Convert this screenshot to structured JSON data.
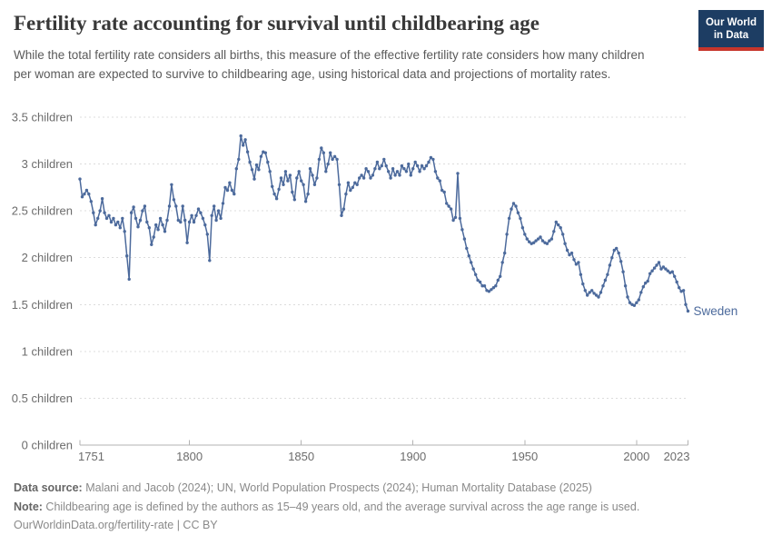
{
  "header": {
    "title": "Fertility rate accounting for survival until childbearing age",
    "subtitle": "While the total fertility rate considers all births, this measure of the effective fertility rate considers how many children per woman are expected to survive to childbearing age, using historical data and projections of mortality rates.",
    "logo": {
      "line1": "Our World",
      "line2": "in Data"
    }
  },
  "colors": {
    "series_blue": "#4C6A9C",
    "logo_bg": "#1d3d63",
    "logo_stripe": "#c7352b",
    "grid": "#dcdcdc",
    "axis": "#b3b3b3",
    "tick_text": "#6c6c6c"
  },
  "chart_data": {
    "type": "line",
    "title": "Fertility rate accounting for survival until childbearing age",
    "xlabel": "",
    "ylabel": "",
    "xlim": [
      1751,
      2023
    ],
    "ylim": [
      0,
      3.5
    ],
    "grid": "dashed horizontal",
    "legend_position": "end-of-line label",
    "y_axis": {
      "ticks": [
        {
          "value": 3.5,
          "label": "3.5 children"
        },
        {
          "value": 3,
          "label": "3 children"
        },
        {
          "value": 2.5,
          "label": "2.5 children"
        },
        {
          "value": 2,
          "label": "2 children"
        },
        {
          "value": 1.5,
          "label": "1.5 children"
        },
        {
          "value": 1,
          "label": "1 children"
        },
        {
          "value": 0.5,
          "label": "0.5 children"
        },
        {
          "value": 0,
          "label": "0 children"
        }
      ]
    },
    "x_axis": {
      "ticks": [
        {
          "value": 1751,
          "label": "1751"
        },
        {
          "value": 1800,
          "label": "1800"
        },
        {
          "value": 1850,
          "label": "1850"
        },
        {
          "value": 1900,
          "label": "1900"
        },
        {
          "value": 1950,
          "label": "1950"
        },
        {
          "value": 2000,
          "label": "2000"
        },
        {
          "value": 2023,
          "label": "2023"
        }
      ]
    },
    "series": [
      {
        "name": "Sweden",
        "color": "#4C6A9C",
        "label_last_value": 1.43,
        "years": [
          1751,
          1752,
          1753,
          1754,
          1755,
          1756,
          1757,
          1758,
          1759,
          1760,
          1761,
          1762,
          1763,
          1764,
          1765,
          1766,
          1767,
          1768,
          1769,
          1770,
          1771,
          1772,
          1773,
          1774,
          1775,
          1776,
          1777,
          1778,
          1779,
          1780,
          1781,
          1782,
          1783,
          1784,
          1785,
          1786,
          1787,
          1788,
          1789,
          1790,
          1791,
          1792,
          1793,
          1794,
          1795,
          1796,
          1797,
          1798,
          1799,
          1800,
          1801,
          1802,
          1803,
          1804,
          1805,
          1806,
          1807,
          1808,
          1809,
          1810,
          1811,
          1812,
          1813,
          1814,
          1815,
          1816,
          1817,
          1818,
          1819,
          1820,
          1821,
          1822,
          1823,
          1824,
          1825,
          1826,
          1827,
          1828,
          1829,
          1830,
          1831,
          1832,
          1833,
          1834,
          1835,
          1836,
          1837,
          1838,
          1839,
          1840,
          1841,
          1842,
          1843,
          1844,
          1845,
          1846,
          1847,
          1848,
          1849,
          1850,
          1851,
          1852,
          1853,
          1854,
          1855,
          1856,
          1857,
          1858,
          1859,
          1860,
          1861,
          1862,
          1863,
          1864,
          1865,
          1866,
          1867,
          1868,
          1869,
          1870,
          1871,
          1872,
          1873,
          1874,
          1875,
          1876,
          1877,
          1878,
          1879,
          1880,
          1881,
          1882,
          1883,
          1884,
          1885,
          1886,
          1887,
          1888,
          1889,
          1890,
          1891,
          1892,
          1893,
          1894,
          1895,
          1896,
          1897,
          1898,
          1899,
          1900,
          1901,
          1902,
          1903,
          1904,
          1905,
          1906,
          1907,
          1908,
          1909,
          1910,
          1911,
          1912,
          1913,
          1914,
          1915,
          1916,
          1917,
          1918,
          1919,
          1920,
          1921,
          1922,
          1923,
          1924,
          1925,
          1926,
          1927,
          1928,
          1929,
          1930,
          1931,
          1932,
          1933,
          1934,
          1935,
          1936,
          1937,
          1938,
          1939,
          1940,
          1941,
          1942,
          1943,
          1944,
          1945,
          1946,
          1947,
          1948,
          1949,
          1950,
          1951,
          1952,
          1953,
          1954,
          1955,
          1956,
          1957,
          1958,
          1959,
          1960,
          1961,
          1962,
          1963,
          1964,
          1965,
          1966,
          1967,
          1968,
          1969,
          1970,
          1971,
          1972,
          1973,
          1974,
          1975,
          1976,
          1977,
          1978,
          1979,
          1980,
          1981,
          1982,
          1983,
          1984,
          1985,
          1986,
          1987,
          1988,
          1989,
          1990,
          1991,
          1992,
          1993,
          1994,
          1995,
          1996,
          1997,
          1998,
          1999,
          2000,
          2001,
          2002,
          2003,
          2004,
          2005,
          2006,
          2007,
          2008,
          2009,
          2010,
          2011,
          2012,
          2013,
          2014,
          2015,
          2016,
          2017,
          2018,
          2019,
          2020,
          2021,
          2022,
          2023
        ],
        "values": [
          2.84,
          2.65,
          2.68,
          2.72,
          2.68,
          2.6,
          2.48,
          2.35,
          2.42,
          2.5,
          2.63,
          2.48,
          2.42,
          2.45,
          2.38,
          2.42,
          2.35,
          2.38,
          2.32,
          2.42,
          2.28,
          2.02,
          1.77,
          2.48,
          2.54,
          2.42,
          2.33,
          2.4,
          2.5,
          2.55,
          2.38,
          2.32,
          2.14,
          2.22,
          2.35,
          2.3,
          2.42,
          2.35,
          2.28,
          2.4,
          2.55,
          2.78,
          2.62,
          2.55,
          2.4,
          2.38,
          2.55,
          2.4,
          2.16,
          2.38,
          2.45,
          2.38,
          2.45,
          2.52,
          2.48,
          2.42,
          2.35,
          2.25,
          1.97,
          2.45,
          2.55,
          2.4,
          2.5,
          2.42,
          2.58,
          2.75,
          2.72,
          2.8,
          2.72,
          2.68,
          2.95,
          3.05,
          3.3,
          3.2,
          3.26,
          3.13,
          3.02,
          2.94,
          2.84,
          2.99,
          2.94,
          3.08,
          3.13,
          3.12,
          3.02,
          2.92,
          2.76,
          2.68,
          2.63,
          2.73,
          2.85,
          2.78,
          2.92,
          2.82,
          2.88,
          2.7,
          2.62,
          2.85,
          2.92,
          2.82,
          2.78,
          2.6,
          2.68,
          2.95,
          2.88,
          2.78,
          2.85,
          3.05,
          3.17,
          3.12,
          2.92,
          3.0,
          3.12,
          3.05,
          3.08,
          3.05,
          2.78,
          2.45,
          2.52,
          2.68,
          2.8,
          2.72,
          2.75,
          2.8,
          2.78,
          2.85,
          2.88,
          2.85,
          2.95,
          2.92,
          2.85,
          2.88,
          2.95,
          3.02,
          2.95,
          2.98,
          3.05,
          2.98,
          2.92,
          2.85,
          2.95,
          2.88,
          2.92,
          2.88,
          2.98,
          2.95,
          2.92,
          3.0,
          2.88,
          2.95,
          3.02,
          2.98,
          2.92,
          2.98,
          2.95,
          2.98,
          3.02,
          3.07,
          3.05,
          2.92,
          2.85,
          2.82,
          2.72,
          2.7,
          2.58,
          2.55,
          2.52,
          2.4,
          2.43,
          2.9,
          2.42,
          2.3,
          2.2,
          2.1,
          2.02,
          1.95,
          1.88,
          1.82,
          1.76,
          1.74,
          1.7,
          1.7,
          1.65,
          1.64,
          1.66,
          1.68,
          1.7,
          1.76,
          1.8,
          1.95,
          2.05,
          2.25,
          2.42,
          2.52,
          2.58,
          2.55,
          2.48,
          2.42,
          2.32,
          2.25,
          2.2,
          2.17,
          2.15,
          2.16,
          2.18,
          2.2,
          2.22,
          2.18,
          2.16,
          2.15,
          2.18,
          2.2,
          2.28,
          2.38,
          2.35,
          2.32,
          2.25,
          2.15,
          2.08,
          2.03,
          2.05,
          1.98,
          1.93,
          1.95,
          1.82,
          1.72,
          1.65,
          1.6,
          1.63,
          1.65,
          1.62,
          1.6,
          1.58,
          1.63,
          1.7,
          1.76,
          1.82,
          1.92,
          2.0,
          2.08,
          2.1,
          2.05,
          1.96,
          1.85,
          1.7,
          1.58,
          1.52,
          1.5,
          1.49,
          1.52,
          1.55,
          1.63,
          1.69,
          1.73,
          1.75,
          1.83,
          1.86,
          1.89,
          1.92,
          1.95,
          1.88,
          1.9,
          1.88,
          1.86,
          1.84,
          1.85,
          1.8,
          1.74,
          1.68,
          1.64,
          1.65,
          1.5,
          1.43
        ]
      }
    ]
  },
  "footer": {
    "datasource_label": "Data source:",
    "datasource_text": " Malani and Jacob (2024); UN, World Population Prospects (2024); Human Mortality Database (2025)",
    "note_label": "Note:",
    "note_text": " Childbearing age is defined by the authors as 15–49 years old, and the average survival across the age range is used.",
    "url": "OurWorldinData.org/fertility-rate",
    "separator": " | ",
    "license": "CC BY"
  }
}
